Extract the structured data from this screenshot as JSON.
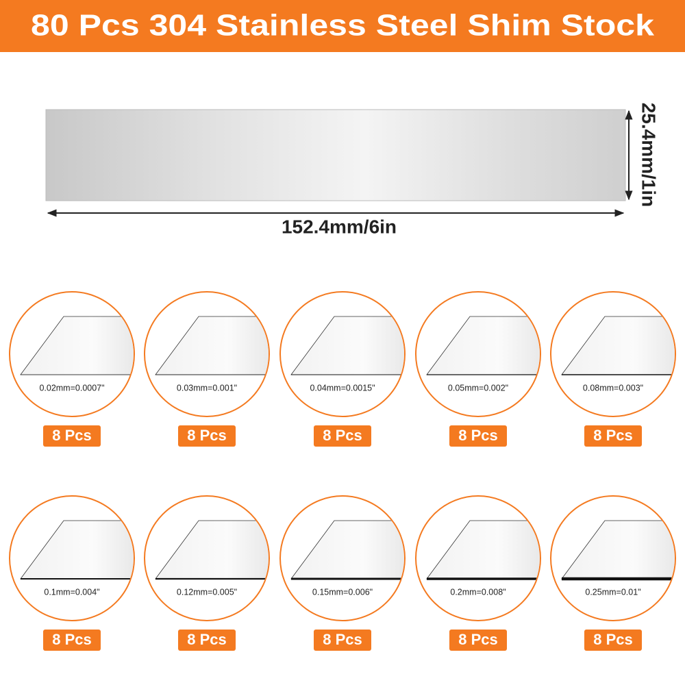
{
  "header": {
    "title": "80 Pcs 304 Stainless Steel Shim Stock"
  },
  "dimensions": {
    "width": "152.4mm/6in",
    "height": "25.4mm/1in"
  },
  "items": [
    {
      "label": "0.02mm=0.0007\"",
      "count": "8 Pcs"
    },
    {
      "label": "0.03mm=0.001\"",
      "count": "8 Pcs"
    },
    {
      "label": "0.04mm=0.0015\"",
      "count": "8 Pcs"
    },
    {
      "label": "0.05mm=0.002\"",
      "count": "8 Pcs"
    },
    {
      "label": "0.08mm=0.003\"",
      "count": "8 Pcs"
    },
    {
      "label": "0.1mm=0.004\"",
      "count": "8 Pcs"
    },
    {
      "label": "0.12mm=0.005\"",
      "count": "8 Pcs"
    },
    {
      "label": "0.15mm=0.006\"",
      "count": "8 Pcs"
    },
    {
      "label": "0.2mm=0.008\"",
      "count": "8 Pcs"
    },
    {
      "label": "0.25mm=0.01\"",
      "count": "8 Pcs"
    }
  ]
}
